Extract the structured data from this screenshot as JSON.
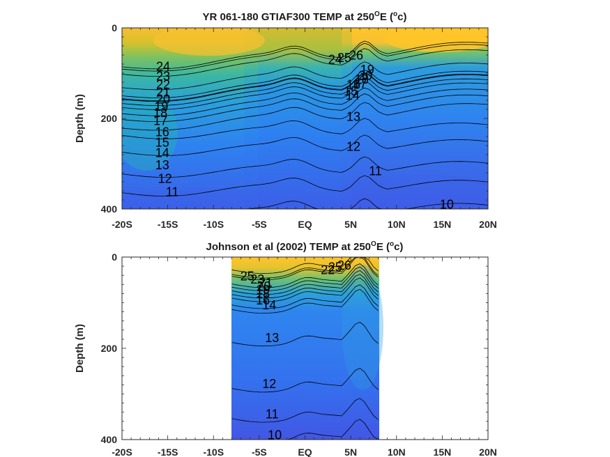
{
  "colors": {
    "warm": "#ffc42a",
    "mid": "#35b7a0",
    "cold": "#3a5de8"
  },
  "chart_data": [
    {
      "type": "heatmap",
      "title": "YR 061-180 GTIAF300 TEMP at 250ᴼE (ᴼc)",
      "title_parts": [
        "YR 061-180 GTIAF300 TEMP at 250",
        "O",
        "E (",
        "o",
        "c)"
      ],
      "xlabel": "",
      "ylabel": "Depth (m)",
      "x_ticks": [
        "-20S",
        "-15S",
        "-10S",
        "-5S",
        "EQ",
        "5N",
        "10N",
        "15N",
        "20N"
      ],
      "y_ticks": [
        "0",
        "200",
        "400"
      ],
      "xlim": [
        -20,
        20
      ],
      "ylim": [
        0,
        400
      ],
      "colorscale": "parula",
      "data_extent": [
        -20,
        20
      ],
      "contour_labels": [
        {
          "text": "24",
          "x": -15.5,
          "y": 85
        },
        {
          "text": "23",
          "x": -15.5,
          "y": 107
        },
        {
          "text": "22",
          "x": -15.5,
          "y": 125
        },
        {
          "text": "21",
          "x": -15.5,
          "y": 142
        },
        {
          "text": "20",
          "x": -15.5,
          "y": 158
        },
        {
          "text": "19",
          "x": -15.7,
          "y": 174
        },
        {
          "text": "18",
          "x": -15.8,
          "y": 188
        },
        {
          "text": "17",
          "x": -15.8,
          "y": 205
        },
        {
          "text": "16",
          "x": -15.6,
          "y": 230
        },
        {
          "text": "15",
          "x": -15.6,
          "y": 253
        },
        {
          "text": "14",
          "x": -15.6,
          "y": 276
        },
        {
          "text": "13",
          "x": -15.6,
          "y": 303
        },
        {
          "text": "12",
          "x": -15.3,
          "y": 333
        },
        {
          "text": "11",
          "x": -14.5,
          "y": 362
        },
        {
          "text": "24",
          "x": 3.3,
          "y": 70
        },
        {
          "text": "25",
          "x": 4.3,
          "y": 66
        },
        {
          "text": "26",
          "x": 5.6,
          "y": 61
        },
        {
          "text": "19",
          "x": 6.8,
          "y": 92
        },
        {
          "text": "20",
          "x": 6.6,
          "y": 105
        },
        {
          "text": "18",
          "x": 6.2,
          "y": 114
        },
        {
          "text": "17",
          "x": 6.0,
          "y": 124
        },
        {
          "text": "16",
          "x": 5.3,
          "y": 125
        },
        {
          "text": "15",
          "x": 5.0,
          "y": 140
        },
        {
          "text": "14",
          "x": 5.2,
          "y": 149
        },
        {
          "text": "13",
          "x": 5.3,
          "y": 196
        },
        {
          "text": "12",
          "x": 5.3,
          "y": 262
        },
        {
          "text": "11",
          "x": 7.7,
          "y": 316
        },
        {
          "text": "10",
          "x": 15.5,
          "y": 390
        }
      ]
    },
    {
      "type": "heatmap",
      "title": "Johnson et al (2002) TEMP at 250ᴼE (ᴼc)",
      "title_parts": [
        "Johnson et al (2002) TEMP at 250",
        "O",
        "E (",
        "o",
        "c)"
      ],
      "xlabel": "",
      "ylabel": "Depth (m)",
      "x_ticks": [
        "-20S",
        "-15S",
        "-10S",
        "-5S",
        "EQ",
        "5N",
        "10N",
        "15N",
        "20N"
      ],
      "y_ticks": [
        "0",
        "200",
        "400"
      ],
      "xlim": [
        -20,
        20
      ],
      "ylim": [
        0,
        400
      ],
      "colorscale": "parula",
      "data_extent": [
        -8,
        8
      ],
      "contour_labels": [
        {
          "text": "25",
          "x": -6.3,
          "y": 42
        },
        {
          "text": "23",
          "x": -5.2,
          "y": 49
        },
        {
          "text": "21",
          "x": -4.3,
          "y": 56
        },
        {
          "text": "20",
          "x": -4.5,
          "y": 64
        },
        {
          "text": "19",
          "x": -4.6,
          "y": 72
        },
        {
          "text": "18",
          "x": -4.6,
          "y": 80
        },
        {
          "text": "16",
          "x": -4.6,
          "y": 95
        },
        {
          "text": "14",
          "x": -3.9,
          "y": 105
        },
        {
          "text": "22",
          "x": 2.5,
          "y": 28
        },
        {
          "text": "25",
          "x": 3.3,
          "y": 22
        },
        {
          "text": "26",
          "x": 4.3,
          "y": 18
        },
        {
          "text": "13",
          "x": -3.6,
          "y": 177
        },
        {
          "text": "12",
          "x": -3.9,
          "y": 278
        },
        {
          "text": "11",
          "x": -3.6,
          "y": 344
        },
        {
          "text": "10",
          "x": -3.3,
          "y": 390
        }
      ]
    }
  ]
}
